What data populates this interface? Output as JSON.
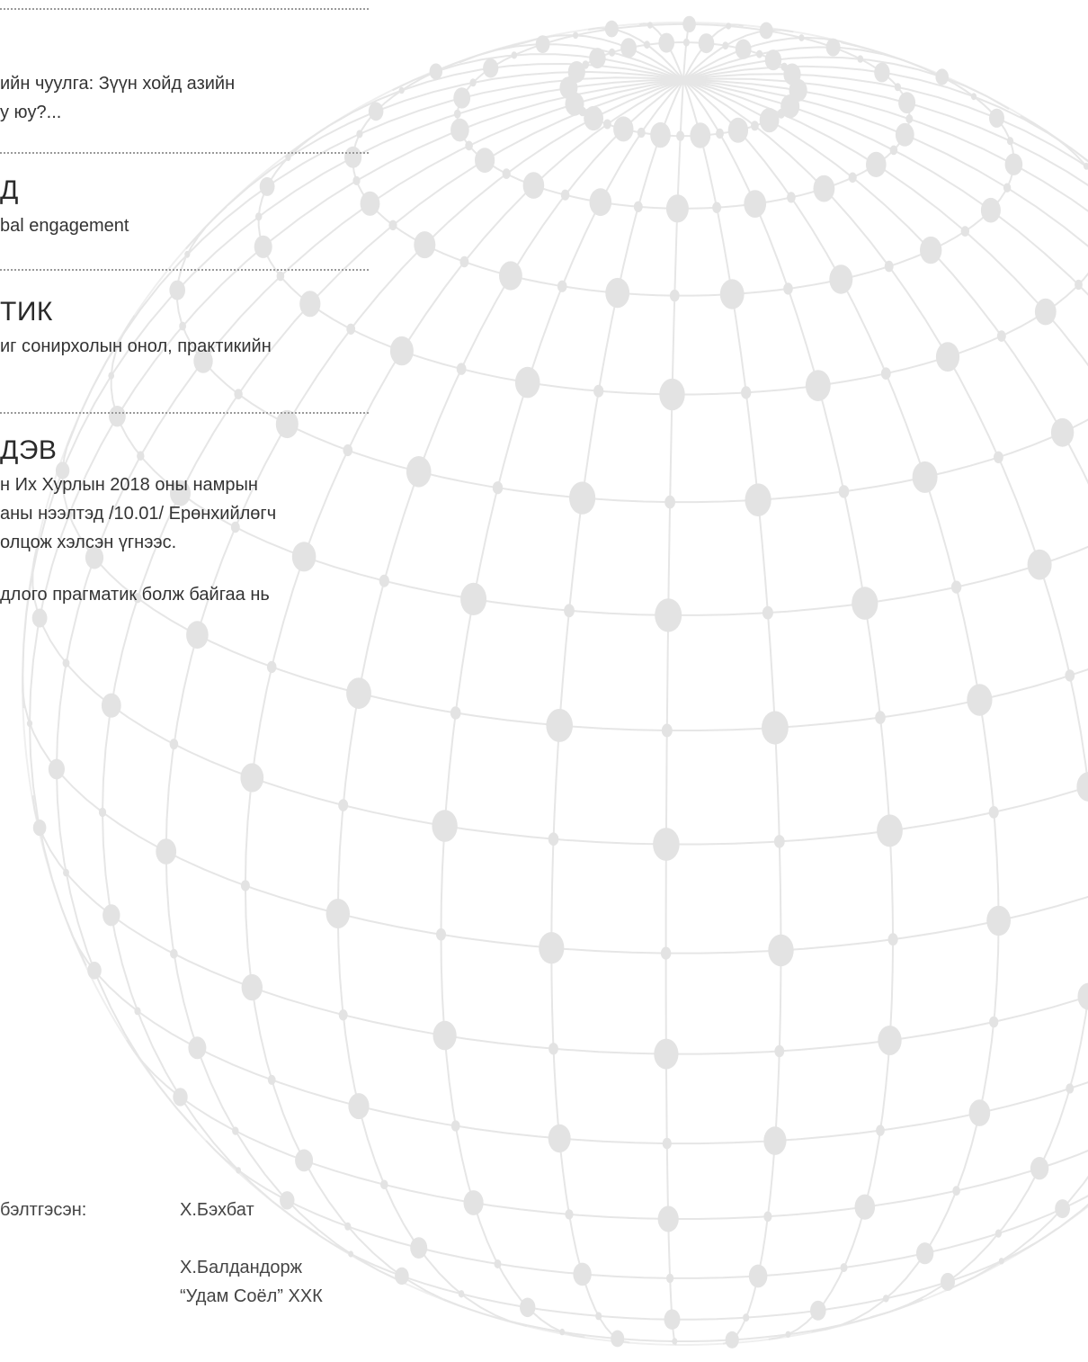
{
  "sections": [
    {
      "lines": [
        "ийн чуулга: Зүүн хойд азийн",
        "у юу?..."
      ]
    },
    {
      "heading": "Д",
      "lines": [
        "bal engagement"
      ]
    },
    {
      "heading": "ТИК",
      "lines": [
        "иг сонирхолын онол, практикийн"
      ]
    },
    {
      "heading": "ДЭВ",
      "lines": [
        "н Их Хурлын 2018 оны намрын",
        "аны нээлтэд /10.01/ Ерөнхийлөгч",
        "олцож  хэлсэн үгнээс.",
        "",
        "длого прагматик болж байгаа нь"
      ]
    }
  ],
  "credits": {
    "label": "бэлтгэсэн:",
    "names": [
      "Х.Бэхбат",
      "Х.Балдандорж",
      "“Удам Соёл” ХХК"
    ]
  },
  "colors": {
    "globe_line": "#e6e6e6",
    "globe_dot": "#e3e3e3",
    "rule": "#9a9a9a"
  }
}
